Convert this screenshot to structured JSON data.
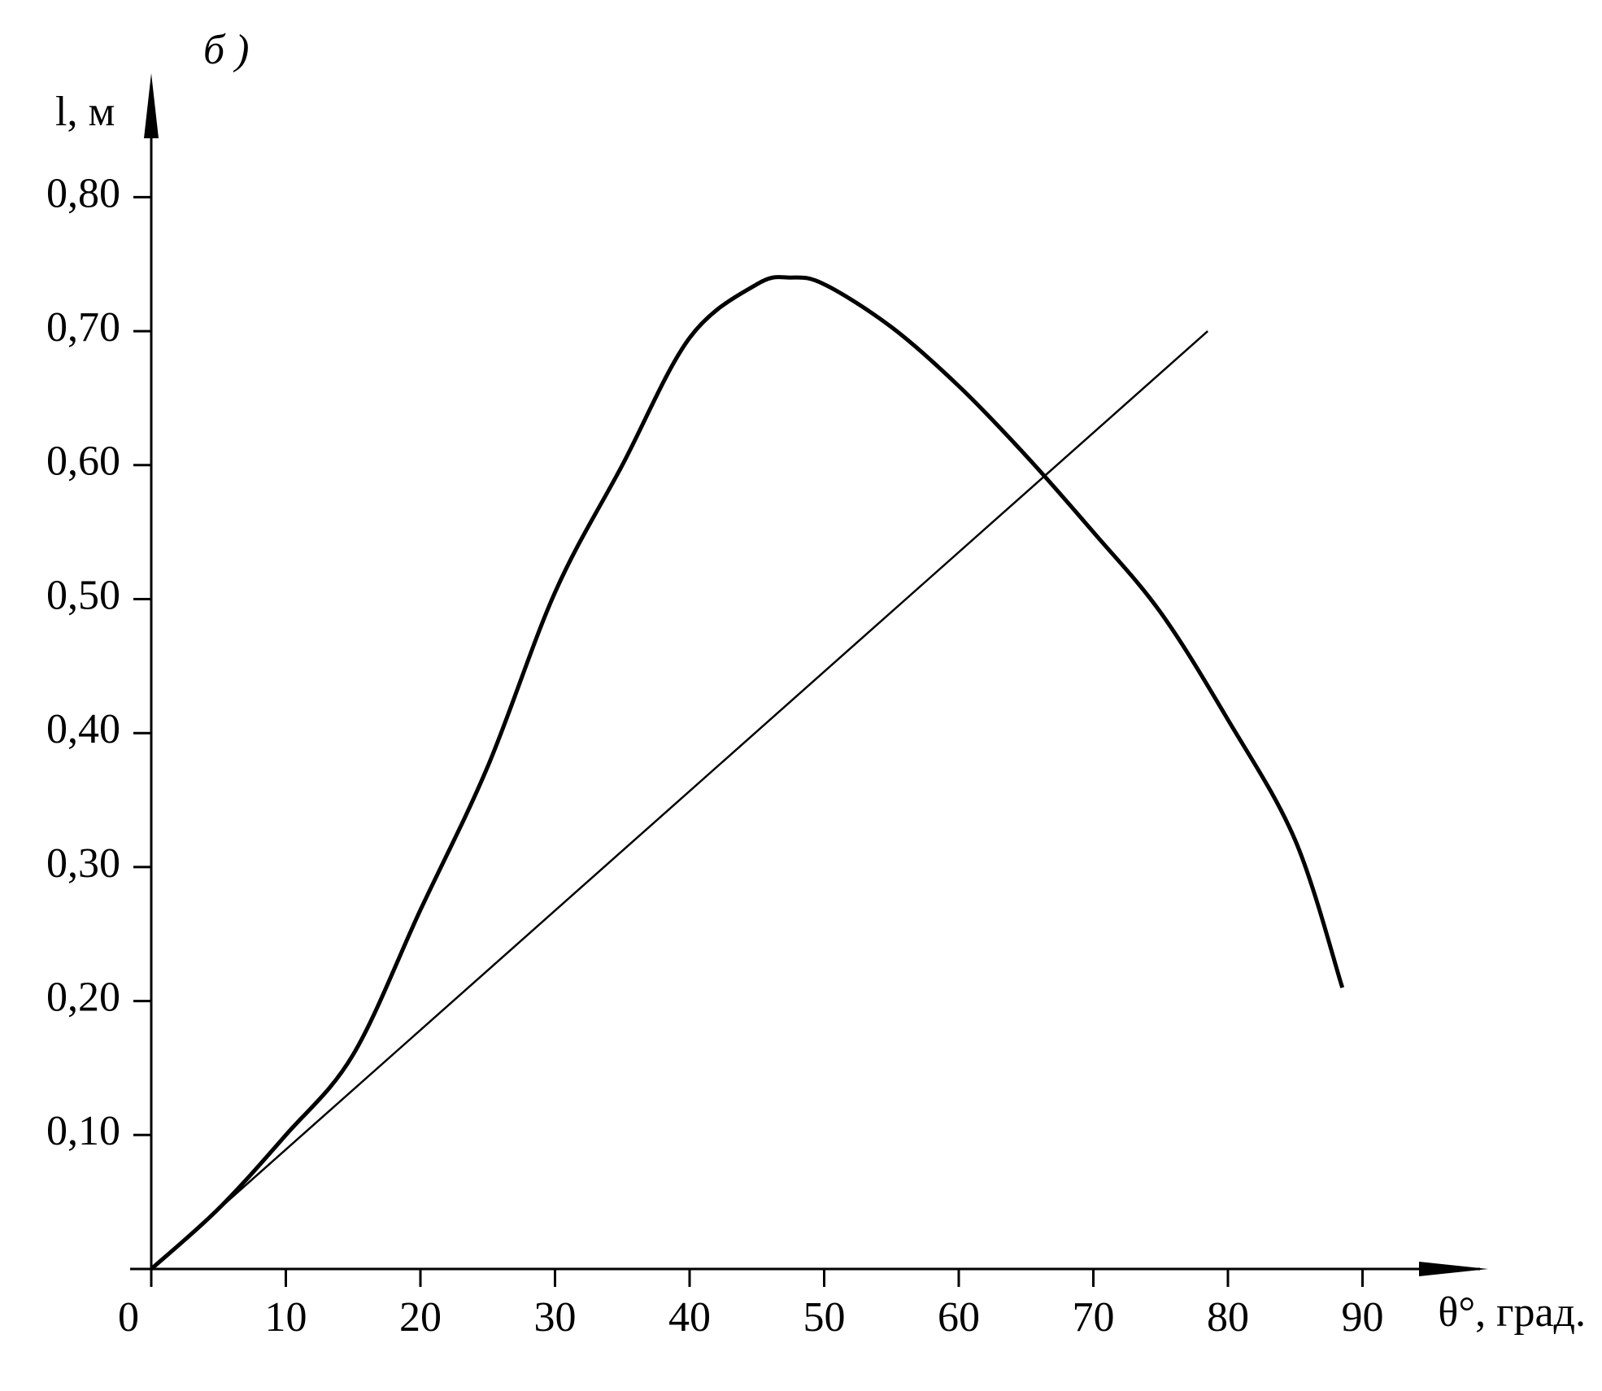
{
  "chart_data": {
    "type": "line",
    "panel_label": "б )",
    "y_label": "l, м",
    "x_label": "θ°, град.",
    "xlim": [
      0,
      99
    ],
    "ylim": [
      0,
      0.88
    ],
    "xticks": [
      0,
      10,
      20,
      30,
      40,
      50,
      60,
      70,
      80,
      90
    ],
    "yticks": [
      {
        "value": 0.1,
        "label": "0,10"
      },
      {
        "value": 0.2,
        "label": "0,20"
      },
      {
        "value": 0.3,
        "label": "0,30"
      },
      {
        "value": 0.4,
        "label": "0,40"
      },
      {
        "value": 0.5,
        "label": "0,50"
      },
      {
        "value": 0.6,
        "label": "0,60"
      },
      {
        "value": 0.7,
        "label": "0,70"
      },
      {
        "value": 0.8,
        "label": "0,80"
      }
    ],
    "grid": false,
    "series": [
      {
        "color": "#000000",
        "width": 5,
        "x": [
          0,
          5,
          10,
          15,
          20,
          25,
          30,
          35,
          40,
          45,
          47.5,
          50,
          55,
          60,
          65,
          70,
          75,
          80,
          85,
          88.5
        ],
        "values": [
          0,
          0.045,
          0.1,
          0.16,
          0.268,
          0.375,
          0.505,
          0.6,
          0.695,
          0.735,
          0.74,
          0.735,
          0.703,
          0.659,
          0.607,
          0.55,
          0.49,
          0.41,
          0.32,
          0.21
        ]
      },
      {
        "color": "#000000",
        "width": 2.5,
        "x": [
          0,
          78.5
        ],
        "values": [
          0,
          0.7
        ]
      }
    ]
  }
}
